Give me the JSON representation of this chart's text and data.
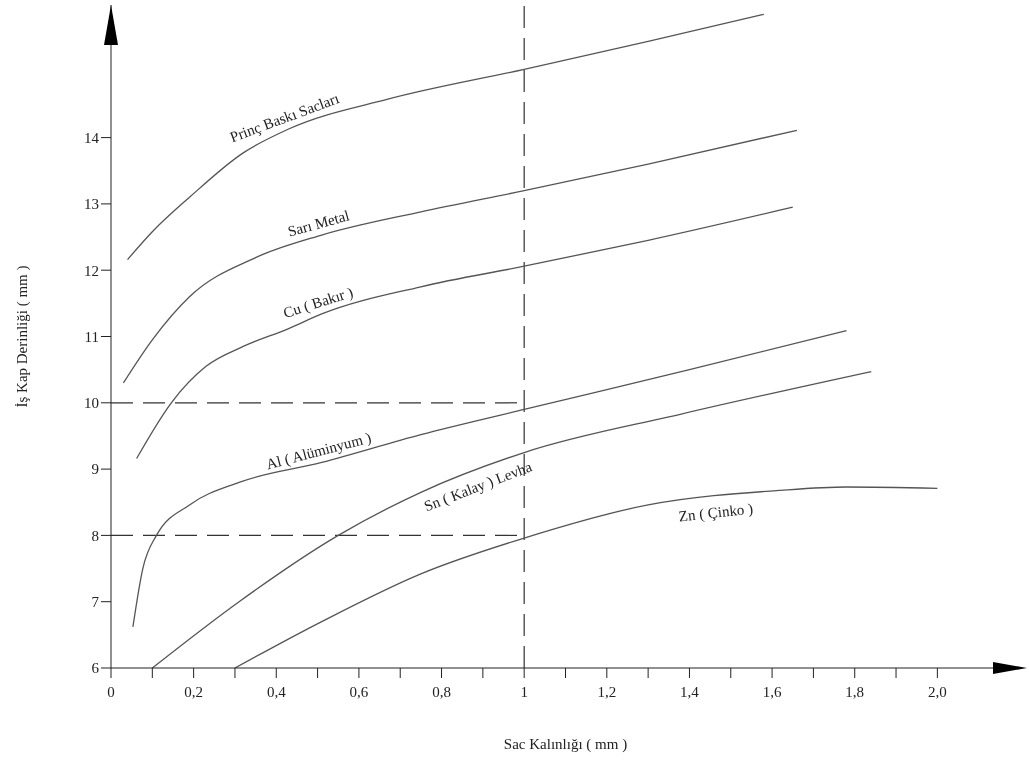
{
  "chart_data": {
    "type": "line",
    "xlabel": "Sac Kalınlığı ( mm )",
    "ylabel": "İş Kap Derinliği ( mm )",
    "xlim": [
      0,
      2.2
    ],
    "ylim": [
      6,
      16
    ],
    "xticks": [
      0,
      {
        "value": 0.1,
        "label": null
      },
      {
        "value": 0.2,
        "label": "0,2"
      },
      {
        "value": 0.3,
        "label": null
      },
      {
        "value": 0.4,
        "label": "0,4"
      },
      {
        "value": 0.5,
        "label": null
      },
      {
        "value": 0.6,
        "label": "0,6"
      },
      {
        "value": 0.7,
        "label": null
      },
      {
        "value": 0.8,
        "label": "0,8"
      },
      {
        "value": 0.9,
        "label": null
      },
      1,
      {
        "value": 1.1,
        "label": null
      },
      {
        "value": 1.2,
        "label": "1,2"
      },
      {
        "value": 1.3,
        "label": null
      },
      {
        "value": 1.4,
        "label": "1,4"
      },
      {
        "value": 1.5,
        "label": null
      },
      {
        "value": 1.6,
        "label": "1,6"
      },
      {
        "value": 1.7,
        "label": null
      },
      {
        "value": 1.8,
        "label": "1,8"
      },
      {
        "value": 1.9,
        "label": null
      },
      {
        "value": 2.0,
        "label": "2,0"
      }
    ],
    "yticks": [
      6,
      7,
      8,
      9,
      10,
      11,
      12,
      13,
      14
    ],
    "grid": false,
    "legend": false,
    "marker": "none",
    "line_style": "solid",
    "ref_lines": [
      {
        "axis": "y",
        "value": 10,
        "label": null,
        "color": "#333333",
        "line_style": "dashed"
      },
      {
        "axis": "y",
        "value": 8,
        "label": null,
        "color": "#333333",
        "line_style": "dashed"
      },
      {
        "axis": "x",
        "value": 1,
        "label": null,
        "color": "#333333",
        "line_style": "dashed"
      }
    ],
    "series": [
      {
        "name": "Prinç Baskı Sacları",
        "color": "#555555",
        "x": [
          0.04,
          0.1,
          0.19,
          0.32,
          0.43,
          0.67,
          1.0,
          1.3,
          1.58
        ],
        "values": [
          12.16,
          12.58,
          13.1,
          13.77,
          14.13,
          14.58,
          15.03,
          15.45,
          15.86
        ]
      },
      {
        "name": "Sarı Metal",
        "color": "#555555",
        "x": [
          0.03,
          0.1,
          0.19,
          0.35,
          0.51,
          0.75,
          1.0,
          1.3,
          1.66
        ],
        "values": [
          10.3,
          10.95,
          11.6,
          12.19,
          12.53,
          12.88,
          13.2,
          13.6,
          14.11
        ]
      },
      {
        "name": "Cu ( Bakır )",
        "color": "#555555",
        "x": [
          0.062,
          0.146,
          0.23,
          0.32,
          0.43,
          0.51,
          0.75,
          1.0,
          1.3,
          1.65
        ],
        "values": [
          9.16,
          10.0,
          10.55,
          10.85,
          11.12,
          11.34,
          11.75,
          12.06,
          12.45,
          12.95
        ]
      },
      {
        "name": "Al ( Alüminyum )",
        "color": "#555555",
        "x": [
          0.053,
          0.077,
          0.11,
          0.19,
          0.31,
          0.51,
          0.75,
          1.0,
          1.4,
          1.78
        ],
        "values": [
          6.62,
          7.5,
          8.0,
          8.46,
          8.8,
          9.1,
          9.52,
          9.9,
          10.5,
          11.09
        ]
      },
      {
        "name": "Sn ( Kalay )  Levha",
        "color": "#555555",
        "x": [
          0.1,
          0.31,
          0.55,
          0.75,
          1.0,
          1.38,
          1.84
        ],
        "values": [
          6.0,
          7.0,
          8.0,
          8.65,
          9.25,
          9.83,
          10.47
        ]
      },
      {
        "name": "Zn ( Çinko )",
        "color": "#555555",
        "x": [
          0.3,
          0.51,
          0.75,
          1.0,
          1.3,
          1.62,
          1.78,
          2.0
        ],
        "values": [
          6.0,
          6.7,
          7.42,
          7.96,
          8.46,
          8.68,
          8.73,
          8.71
        ]
      }
    ]
  }
}
